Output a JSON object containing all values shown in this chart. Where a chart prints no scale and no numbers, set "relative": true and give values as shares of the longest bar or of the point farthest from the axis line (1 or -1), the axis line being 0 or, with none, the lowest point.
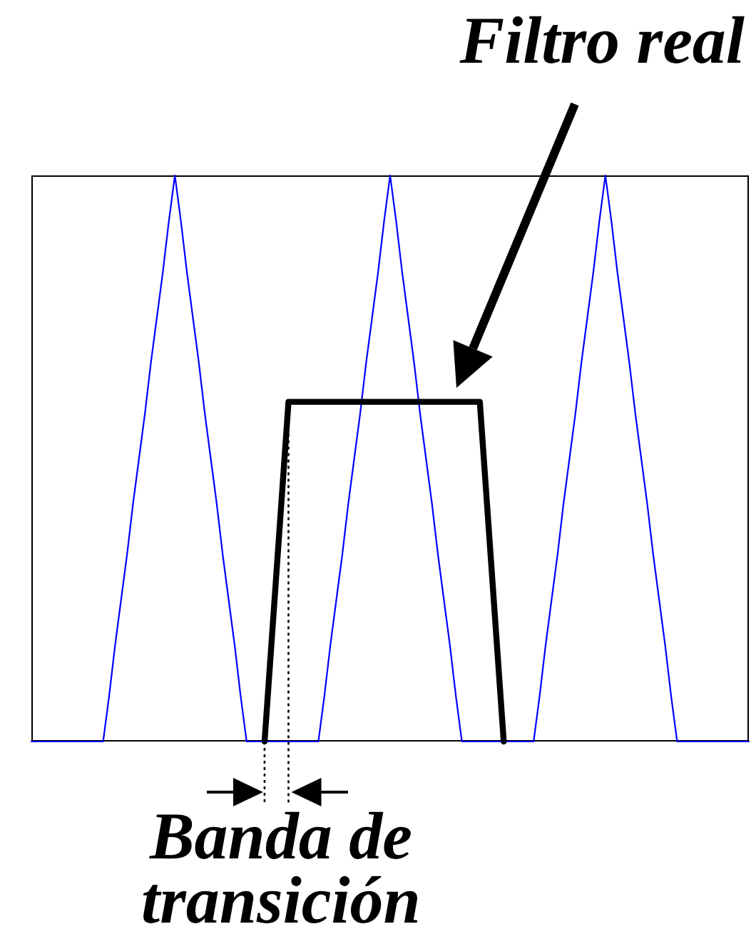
{
  "chart_data": {
    "type": "line",
    "relative": true,
    "tick_labels": false,
    "marker": "none",
    "categories": [
      null,
      null,
      null,
      null,
      null,
      null,
      null,
      null,
      null,
      null,
      null,
      null,
      null,
      null,
      null,
      null,
      null,
      null,
      null,
      null,
      null,
      null,
      null,
      null,
      null,
      null,
      null,
      null,
      null,
      null,
      null,
      null,
      null,
      null,
      null,
      null,
      null,
      null,
      null,
      null,
      null,
      null,
      null,
      null,
      null,
      null,
      null,
      null,
      null,
      null,
      null,
      null,
      null,
      null,
      null,
      null,
      null,
      null,
      null,
      null,
      null,
      null,
      null,
      null,
      null,
      null,
      null,
      null,
      null,
      null,
      null,
      null,
      null,
      null,
      null,
      null,
      null,
      null,
      null,
      null,
      null,
      null,
      null,
      null,
      null,
      null,
      null,
      null,
      null,
      null,
      null,
      null,
      null,
      null,
      null,
      null,
      null,
      null,
      null,
      null,
      null,
      null,
      null,
      null,
      null,
      null,
      null,
      null,
      null,
      null,
      null,
      null,
      null,
      null,
      null,
      null,
      null,
      null,
      null,
      null,
      null
    ],
    "series": [
      {
        "color": "#0000ff",
        "values": [
          0,
          0,
          0,
          0,
          0,
          0,
          0,
          0,
          0,
          0,
          0,
          0,
          0,
          0.08,
          0.17,
          0.25,
          0.33,
          0.42,
          0.5,
          0.58,
          0.67,
          0.75,
          0.83,
          0.92,
          1,
          0.92,
          0.83,
          0.75,
          0.67,
          0.58,
          0.5,
          0.42,
          0.33,
          0.25,
          0.17,
          0.08,
          0,
          0,
          0,
          0,
          0,
          0,
          0,
          0,
          0,
          0,
          0,
          0,
          0,
          0.08,
          0.17,
          0.25,
          0.33,
          0.42,
          0.5,
          0.58,
          0.67,
          0.75,
          0.83,
          0.92,
          1,
          0.92,
          0.83,
          0.75,
          0.67,
          0.58,
          0.5,
          0.42,
          0.33,
          0.25,
          0.17,
          0.08,
          0,
          0,
          0,
          0,
          0,
          0,
          0,
          0,
          0,
          0,
          0,
          0,
          0,
          0.08,
          0.17,
          0.25,
          0.33,
          0.42,
          0.5,
          0.58,
          0.67,
          0.75,
          0.83,
          0.92,
          1,
          0.92,
          0.83,
          0.75,
          0.67,
          0.58,
          0.5,
          0.42,
          0.33,
          0.25,
          0.17,
          0.08,
          0,
          0,
          0,
          0,
          0,
          0,
          0,
          0,
          0,
          0,
          0,
          0,
          0
        ]
      },
      {
        "name": "Filtro real",
        "color": "#000000",
        "values": [
          null,
          null,
          null,
          null,
          null,
          null,
          null,
          null,
          null,
          null,
          null,
          null,
          null,
          null,
          null,
          null,
          null,
          null,
          null,
          null,
          null,
          null,
          null,
          null,
          null,
          null,
          null,
          null,
          null,
          null,
          null,
          null,
          null,
          null,
          null,
          null,
          null,
          null,
          null,
          0,
          0.15,
          0.3,
          0.45,
          0.6,
          0.6,
          0.6,
          0.6,
          0.6,
          0.6,
          0.6,
          0.6,
          0.6,
          0.6,
          0.6,
          0.6,
          0.6,
          0.6,
          0.6,
          0.6,
          0.6,
          0.6,
          0.6,
          0.6,
          0.6,
          0.6,
          0.6,
          0.6,
          0.6,
          0.6,
          0.6,
          0.6,
          0.6,
          0.6,
          0.6,
          0.6,
          0.6,
          0.45,
          0.3,
          0.15,
          0,
          null,
          null,
          null,
          null,
          null,
          null,
          null,
          null,
          null,
          null,
          null,
          null,
          null,
          null,
          null,
          null,
          null,
          null,
          null,
          null,
          null,
          null,
          null,
          null,
          null,
          null,
          null,
          null,
          null,
          null,
          null,
          null,
          null,
          null,
          null,
          null,
          null,
          null,
          null,
          null,
          null
        ]
      }
    ],
    "annotations": [
      "Banda de transición"
    ]
  }
}
